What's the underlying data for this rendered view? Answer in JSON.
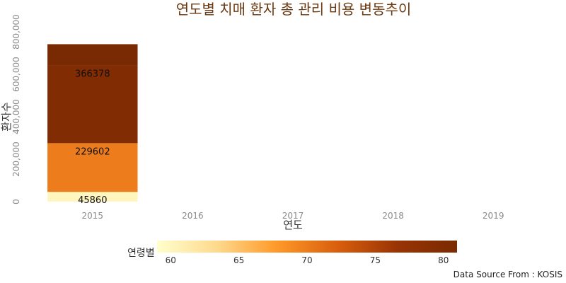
{
  "chart_data": {
    "type": "bar",
    "stacked": true,
    "title": "연도별 치매 환자 총 관리 비용 변동추이",
    "xlabel": "연도",
    "ylabel": "환자수",
    "categories": [
      "2015",
      "2016",
      "2017",
      "2018",
      "2019"
    ],
    "ylim": [
      0,
      800000
    ],
    "yticks": [
      "0",
      "200,000",
      "400,000",
      "600,000",
      "800,000"
    ],
    "segments": [
      {
        "category": "2015",
        "bottom": 0,
        "height": 45860,
        "age": 60,
        "label": "45860"
      },
      {
        "category": "2015",
        "bottom": 45860,
        "height": 229602,
        "age": 70,
        "label": "229602"
      },
      {
        "category": "2015",
        "bottom": 275462,
        "height": 366378,
        "age": 80,
        "label": "366378"
      },
      {
        "category": "2015",
        "bottom": 641840,
        "height": 100000,
        "age": 81,
        "label": ""
      }
    ],
    "colorbar": {
      "label": "연령별",
      "min": 59,
      "max": 81,
      "ticks": [
        "60",
        "65",
        "70",
        "75",
        "80"
      ],
      "colors": [
        "#ffffcc",
        "#fed98e",
        "#fe9929",
        "#d95f0e",
        "#993404",
        "#7a2a02"
      ]
    },
    "grid": true,
    "source": "Data Source From : KOSIS"
  }
}
